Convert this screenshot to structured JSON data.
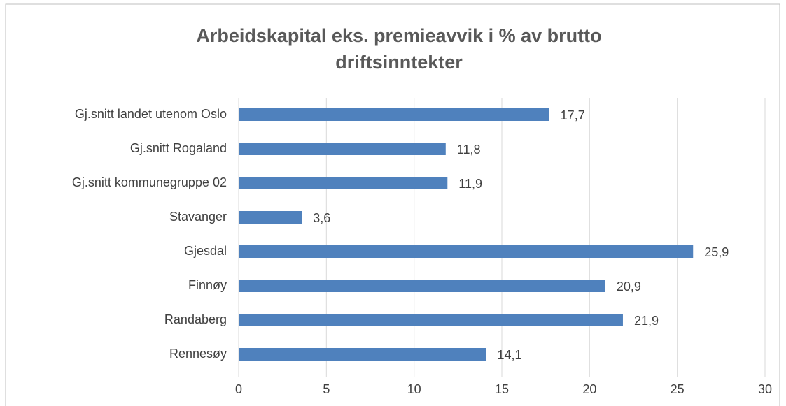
{
  "chart_data": {
    "type": "hbar",
    "title": "Arbeidskapital eks. premieavvik i % av brutto driftsinntekter",
    "categories": [
      "Gj.snitt landet utenom Oslo",
      "Gj.snitt Rogaland",
      "Gj.snitt kommunegruppe 02",
      "Stavanger",
      "Gjesdal",
      "Finnøy",
      "Randaberg",
      "Rennesøy"
    ],
    "values": [
      17.7,
      11.8,
      11.9,
      3.6,
      25.9,
      20.9,
      21.9,
      14.1
    ],
    "value_labels": [
      "17,7",
      "11,8",
      "11,9",
      "3,6",
      "25,9",
      "20,9",
      "21,9",
      "14,1"
    ],
    "color": "#4f81bd",
    "xlim": [
      0,
      30
    ],
    "xticks": [
      0,
      5,
      10,
      15,
      20,
      25,
      30
    ],
    "grid": true
  }
}
